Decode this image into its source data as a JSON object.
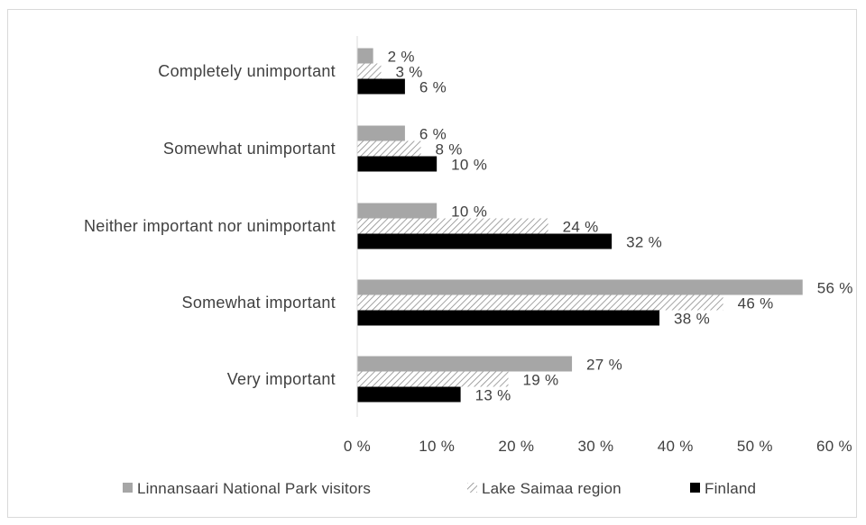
{
  "chart_data": {
    "type": "bar",
    "orientation": "horizontal",
    "categories": [
      "Completely unimportant",
      "Somewhat unimportant",
      "Neither important nor unimportant",
      "Somewhat important",
      "Very important"
    ],
    "series": [
      {
        "name": "Linnansaari National Park visitors",
        "values": [
          2,
          6,
          10,
          56,
          27
        ],
        "labels": [
          "2 %",
          "6 %",
          "10 %",
          "56 %",
          "27 %"
        ],
        "color": "#a6a6a6",
        "pattern": "solid"
      },
      {
        "name": "Lake Saimaa region",
        "values": [
          3,
          8,
          24,
          46,
          19
        ],
        "labels": [
          "3 %",
          "8 %",
          "24 %",
          "46 %",
          "19 %"
        ],
        "color": "#a6a6a6",
        "pattern": "diagonal-hatch"
      },
      {
        "name": "Finland",
        "values": [
          6,
          10,
          32,
          38,
          13
        ],
        "labels": [
          "6 %",
          "10 %",
          "32 %",
          "38 %",
          "13 %"
        ],
        "color": "#000000",
        "pattern": "solid"
      }
    ],
    "xlim": [
      0,
      60
    ],
    "xticks": [
      0,
      10,
      20,
      30,
      40,
      50,
      60
    ],
    "xtick_labels": [
      "0 %",
      "10 %",
      "20 %",
      "30 %",
      "40 %",
      "50 %",
      "60 %"
    ],
    "grid": false,
    "legend_position": "bottom",
    "title": "",
    "xlabel": "",
    "ylabel": ""
  }
}
